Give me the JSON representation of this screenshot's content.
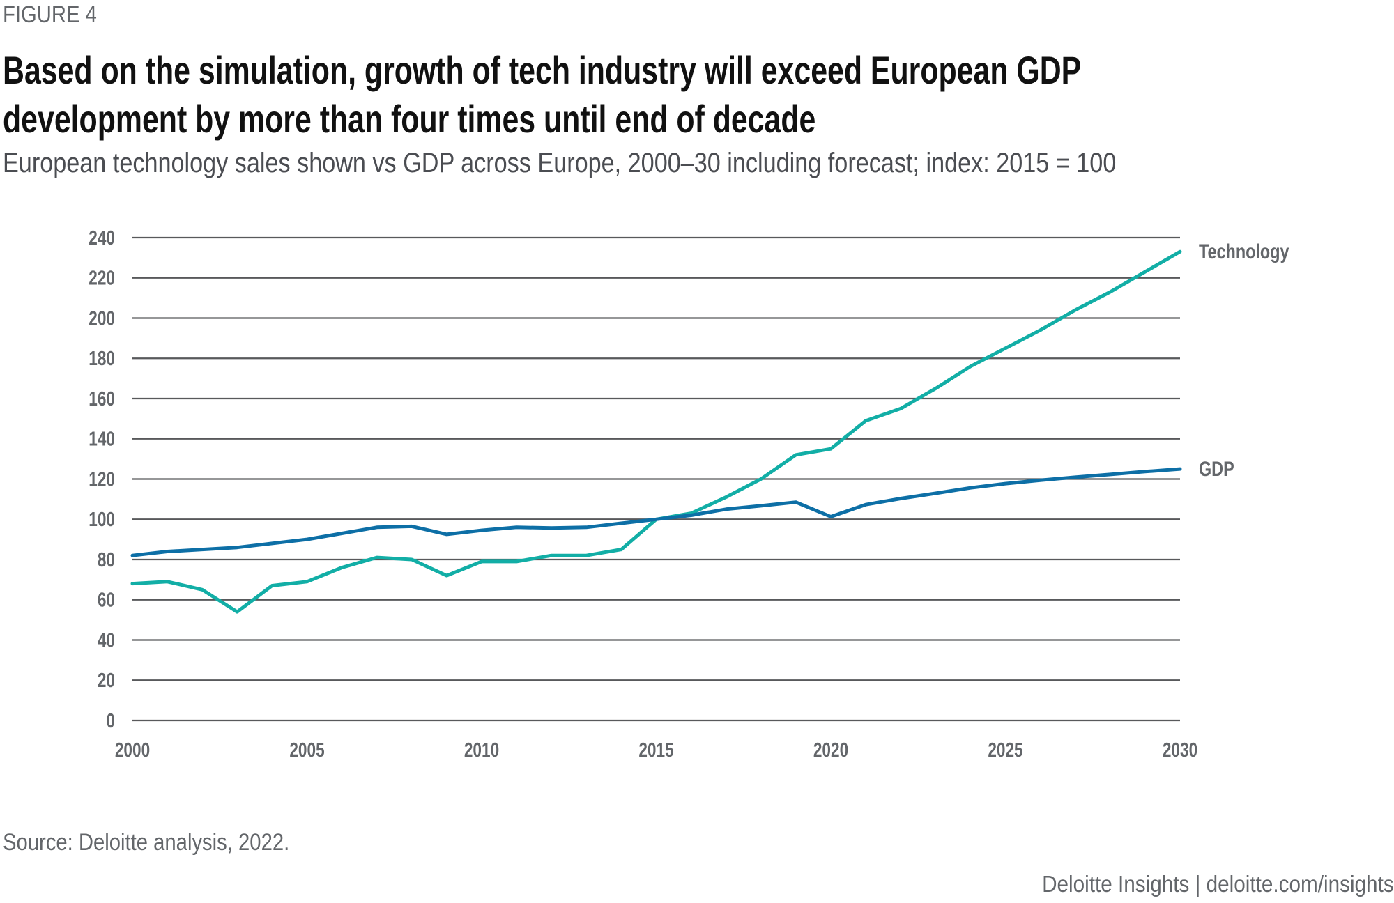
{
  "header": {
    "figure_label": "FIGURE 4",
    "title_line1": "Based on the simulation, growth of tech industry will exceed European GDP",
    "title_line2": "development by more than four times until end of decade",
    "subtitle": "European technology sales shown vs GDP across Europe, 2000–30 including forecast; index: 2015 = 100"
  },
  "footer": {
    "source": "Source: Deloitte analysis, 2022.",
    "credit": "Deloitte Insights | deloitte.com/insights"
  },
  "colors": {
    "technology": "#12aea6",
    "gdp": "#0d6fa6",
    "gridline": "#58595b",
    "label": "#63666a"
  },
  "chart_data": {
    "type": "line",
    "title": "Based on the simulation, growth of tech industry will exceed European GDP development by more than four times until end of decade",
    "subtitle": "European technology sales shown vs GDP across Europe, 2000–30 including forecast; index: 2015 = 100",
    "xlabel": "",
    "ylabel": "",
    "x": [
      2000,
      2001,
      2002,
      2003,
      2004,
      2005,
      2006,
      2007,
      2008,
      2009,
      2010,
      2011,
      2012,
      2013,
      2014,
      2015,
      2016,
      2017,
      2018,
      2019,
      2020,
      2021,
      2022,
      2023,
      2024,
      2025,
      2026,
      2027,
      2028,
      2029,
      2030
    ],
    "xlim": [
      2000,
      2030
    ],
    "x_ticks": [
      "2000",
      "2005",
      "2010",
      "2015",
      "2020",
      "2025",
      "2030"
    ],
    "x_tick_values": [
      2000,
      2005,
      2010,
      2015,
      2020,
      2025,
      2030
    ],
    "ylim": [
      0,
      240
    ],
    "y_ticks": [
      "0",
      "20",
      "40",
      "60",
      "80",
      "100",
      "120",
      "140",
      "160",
      "180",
      "200",
      "220",
      "240"
    ],
    "y_tick_values": [
      0,
      20,
      40,
      60,
      80,
      100,
      120,
      140,
      160,
      180,
      200,
      220,
      240
    ],
    "grid": true,
    "legend": "direct labels at right end of lines",
    "series": [
      {
        "name": "Technology",
        "values": [
          68,
          69,
          65,
          54,
          67,
          69,
          76,
          81,
          80,
          72,
          79,
          79,
          82,
          82,
          85,
          100,
          103,
          111,
          120,
          132,
          135,
          149,
          155,
          165,
          176,
          185,
          194,
          204,
          213,
          223,
          233
        ]
      },
      {
        "name": "GDP",
        "values": [
          82,
          84,
          85,
          86,
          88,
          90,
          93,
          96,
          96.5,
          92.5,
          94.5,
          96,
          95.7,
          96,
          98,
          100,
          102,
          105,
          106.7,
          108.5,
          101.3,
          107.3,
          110.3,
          112.9,
          115.6,
          117.7,
          119.4,
          120.9,
          122.3,
          123.7,
          125
        ]
      }
    ]
  }
}
